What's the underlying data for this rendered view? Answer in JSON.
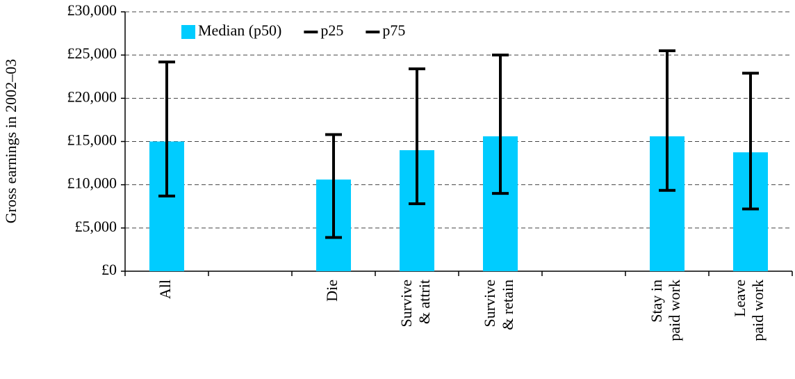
{
  "chart_data": {
    "type": "bar",
    "y_label": "Gross earnings in 2002–03",
    "categories": [
      [
        "All"
      ],
      null,
      [
        "Die"
      ],
      [
        "Survive",
        "& attrit"
      ],
      [
        "Survive",
        "& retain"
      ],
      null,
      [
        "Stay in",
        "paid work"
      ],
      [
        "Leave",
        "paid work"
      ]
    ],
    "series": [
      {
        "name": "Median (p50)",
        "color": "#00ccff",
        "values": [
          15000,
          null,
          10600,
          14000,
          15600,
          null,
          15600,
          13750
        ]
      },
      {
        "name": "p25",
        "color": "#000000",
        "values": [
          8700,
          null,
          3900,
          7800,
          9000,
          null,
          9350,
          7200
        ]
      },
      {
        "name": "p75",
        "color": "#000000",
        "values": [
          24200,
          null,
          15800,
          23400,
          25000,
          null,
          25500,
          22900
        ]
      }
    ],
    "ylim": [
      0,
      30000
    ],
    "yticks": [
      {
        "value": 0,
        "label": "£0"
      },
      {
        "value": 5000,
        "label": "£5,000"
      },
      {
        "value": 10000,
        "label": "£10,000"
      },
      {
        "value": 15000,
        "label": "£15,000"
      },
      {
        "value": 20000,
        "label": "£20,000"
      },
      {
        "value": 25000,
        "label": "£25,000"
      },
      {
        "value": 30000,
        "label": "£30,000"
      }
    ],
    "grid": true,
    "legend": "top"
  }
}
